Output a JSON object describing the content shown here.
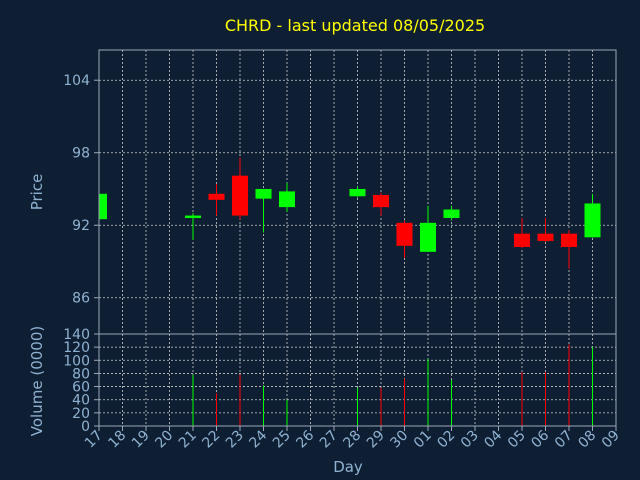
{
  "colors": {
    "background": "#0f1f33",
    "title": "#ffff00",
    "axis_text": "#8fb2d2",
    "grid": "#cccccc",
    "frame": "#9aa8b8",
    "up": "#00ff00",
    "down": "#ff0000"
  },
  "chart_data": {
    "type": "candlestick",
    "title": "CHRD - last updated 08/05/2025",
    "xlabel": "Day",
    "grid": true,
    "days": [
      "17",
      "18",
      "19",
      "20",
      "21",
      "22",
      "23",
      "24",
      "25",
      "26",
      "27",
      "28",
      "29",
      "30",
      "01",
      "02",
      "03",
      "04",
      "05",
      "06",
      "07",
      "08",
      "09"
    ],
    "price_panel": {
      "ylabel": "Price",
      "yticks": [
        86,
        92,
        98,
        104
      ],
      "ylim": [
        83,
        106.5
      ]
    },
    "volume_panel": {
      "ylabel": "Volume (0000)",
      "yticks": [
        0,
        20,
        40,
        60,
        80,
        100,
        120,
        140
      ],
      "ylim": [
        0,
        140
      ]
    },
    "candles": [
      {
        "day": "17",
        "open": 92.5,
        "high": 94.6,
        "low": 92.5,
        "close": 94.6,
        "volume": 0
      },
      {
        "day": "21",
        "open": 92.6,
        "high": 93.0,
        "low": 90.8,
        "close": 92.8,
        "volume": 78
      },
      {
        "day": "22",
        "open": 94.6,
        "high": 95.4,
        "low": 92.8,
        "close": 94.1,
        "volume": 50
      },
      {
        "day": "23",
        "open": 96.1,
        "high": 97.6,
        "low": 92.5,
        "close": 92.8,
        "volume": 78
      },
      {
        "day": "24",
        "open": 94.2,
        "high": 95.0,
        "low": 91.4,
        "close": 95.0,
        "volume": 62
      },
      {
        "day": "25",
        "open": 93.5,
        "high": 95.5,
        "low": 93.1,
        "close": 94.8,
        "volume": 40
      },
      {
        "day": "28",
        "open": 94.4,
        "high": 95.2,
        "low": 94.3,
        "close": 95.0,
        "volume": 58
      },
      {
        "day": "29",
        "open": 94.5,
        "high": 94.7,
        "low": 92.8,
        "close": 93.5,
        "volume": 58
      },
      {
        "day": "30",
        "open": 92.2,
        "high": 92.4,
        "low": 89.3,
        "close": 90.3,
        "volume": 72
      },
      {
        "day": "01",
        "open": 89.8,
        "high": 93.6,
        "low": 89.8,
        "close": 92.2,
        "volume": 102
      },
      {
        "day": "02",
        "open": 92.6,
        "high": 93.6,
        "low": 92.4,
        "close": 93.3,
        "volume": 70
      },
      {
        "day": "05",
        "open": 91.3,
        "high": 92.6,
        "low": 90.1,
        "close": 90.2,
        "volume": 82
      },
      {
        "day": "06",
        "open": 91.3,
        "high": 92.6,
        "low": 90.6,
        "close": 90.7,
        "volume": 82
      },
      {
        "day": "07",
        "open": 91.3,
        "high": 91.6,
        "low": 88.4,
        "close": 90.2,
        "volume": 124
      },
      {
        "day": "08",
        "open": 91.0,
        "high": 94.6,
        "low": 91.0,
        "close": 93.8,
        "volume": 120
      }
    ]
  }
}
